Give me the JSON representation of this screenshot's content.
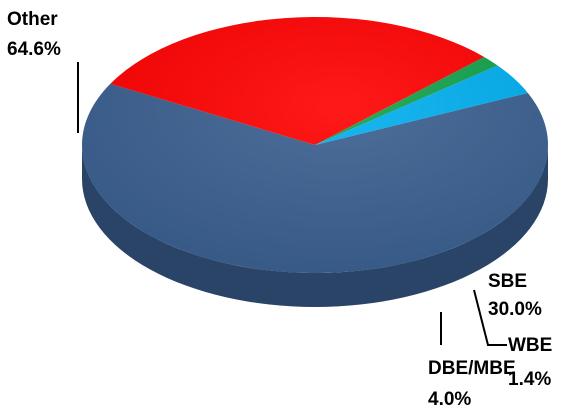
{
  "chart_data": {
    "type": "pie",
    "style": "3d",
    "title": "",
    "slices": [
      {
        "name": "Other",
        "value": 64.6,
        "label": "64.6%",
        "color": "#3A5F8F"
      },
      {
        "name": "SBE",
        "value": 30.0,
        "label": "30.0%",
        "color": "#FF0000"
      },
      {
        "name": "WBE",
        "value": 1.4,
        "label": "1.4%",
        "color": "#11A14A"
      },
      {
        "name": "DBE/MBE",
        "value": 4.0,
        "label": "4.0%",
        "color": "#00AEEF"
      }
    ],
    "legend": "none"
  }
}
